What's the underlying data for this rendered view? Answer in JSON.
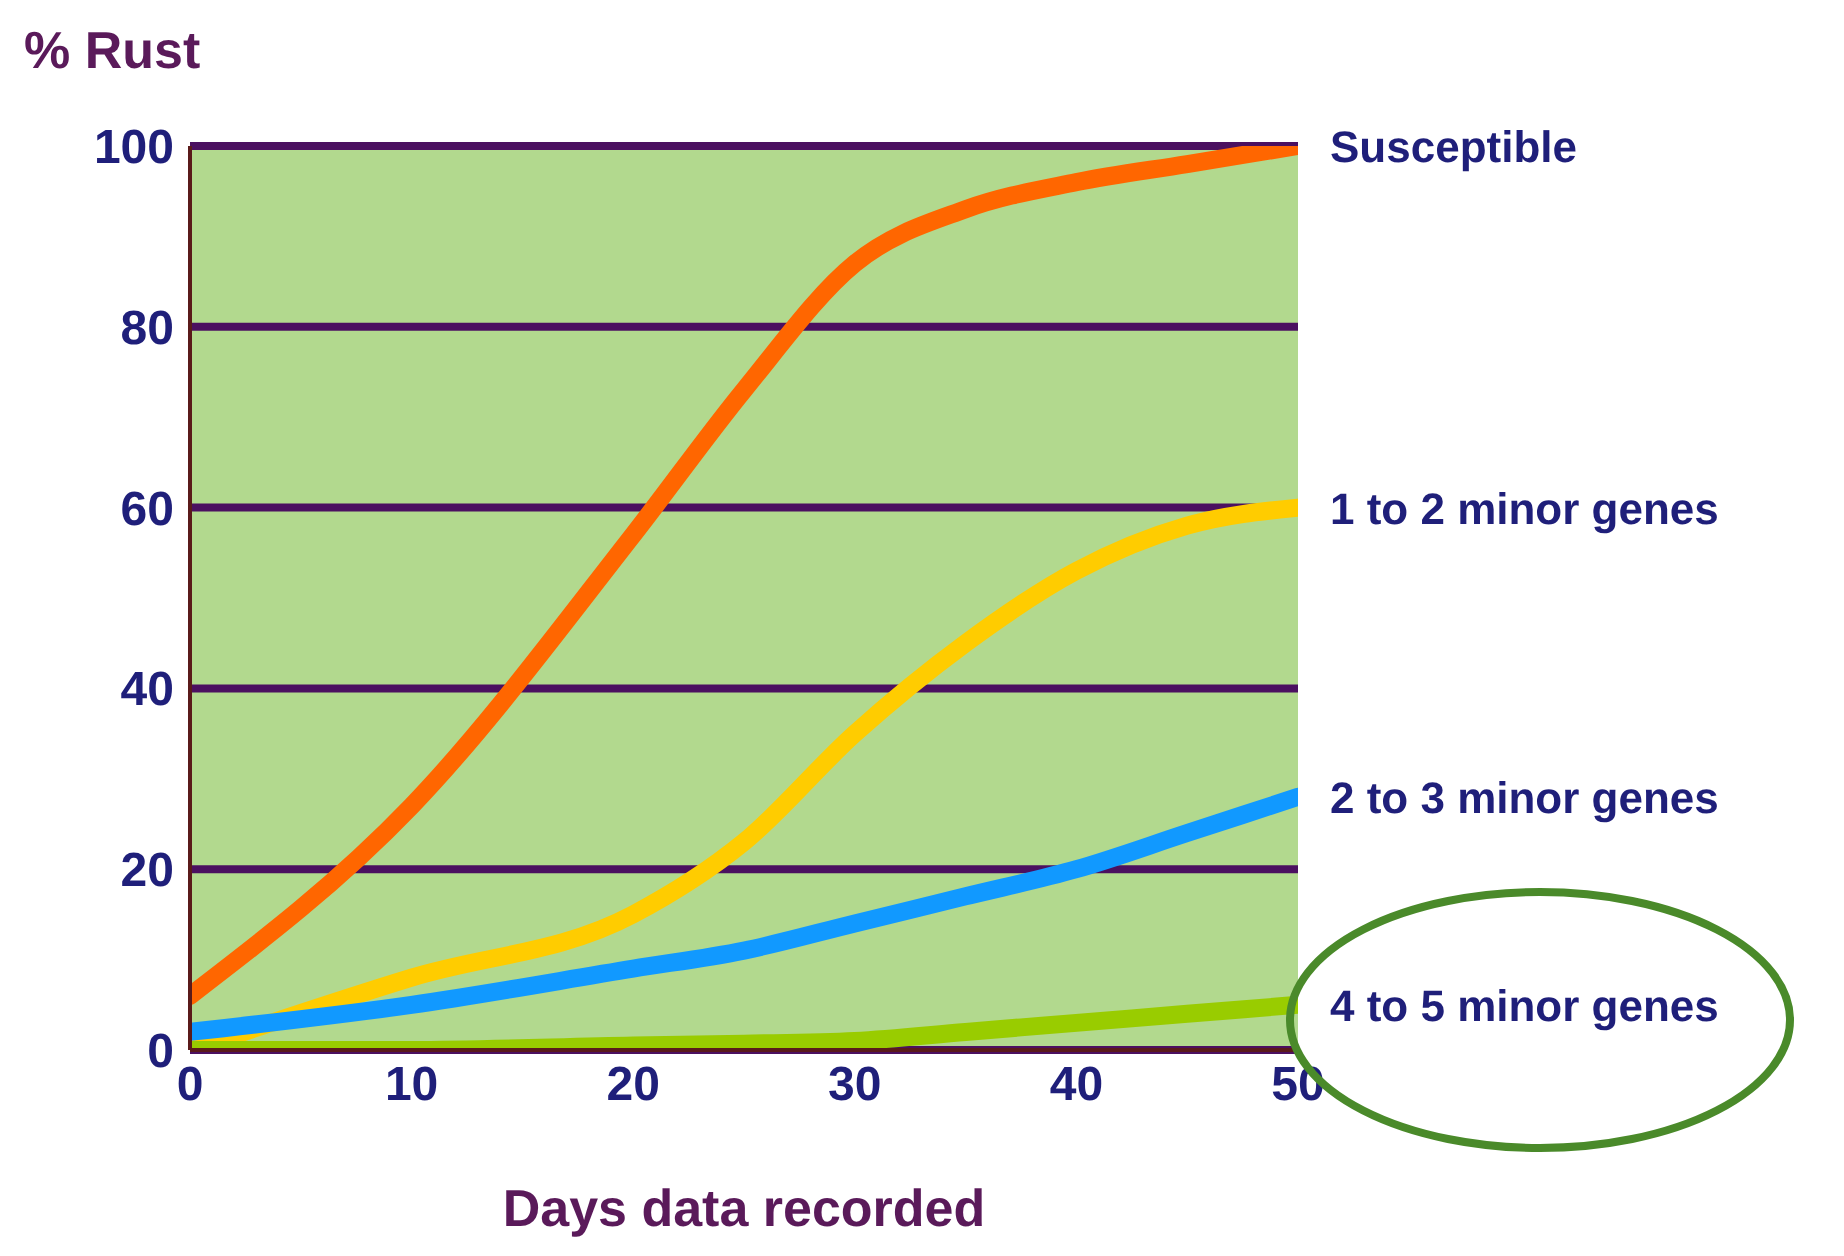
{
  "chart_data": {
    "type": "line",
    "ylabel": "% Rust",
    "xlabel": "Days data recorded",
    "x": [
      0,
      10,
      20,
      25,
      30,
      35,
      40,
      45,
      50
    ],
    "series": [
      {
        "name": "Susceptible",
        "color": "#ff6600",
        "values": [
          6,
          27,
          57,
          73,
          87,
          93,
          96,
          98,
          100
        ]
      },
      {
        "name": "1 to 2 minor genes",
        "color": "#ffcc00",
        "values": [
          0,
          8,
          15,
          23,
          35,
          45,
          53,
          58,
          60
        ]
      },
      {
        "name": "2 to 3 minor genes",
        "color": "#1199ff",
        "values": [
          2,
          5,
          9,
          11,
          14,
          17,
          20,
          24,
          28
        ]
      },
      {
        "name": "4 to 5 minor genes",
        "color": "#99cc00",
        "values": [
          0,
          0,
          0.5,
          0.7,
          1,
          2,
          3,
          4,
          5
        ]
      }
    ],
    "xlim": [
      0,
      50
    ],
    "xticks": [
      0,
      10,
      20,
      30,
      40,
      50
    ],
    "ylim": [
      0,
      100
    ],
    "yticks": [
      0,
      20,
      40,
      60,
      80,
      100
    ],
    "grid": "y",
    "marker": "none",
    "line_style": "solid"
  }
}
